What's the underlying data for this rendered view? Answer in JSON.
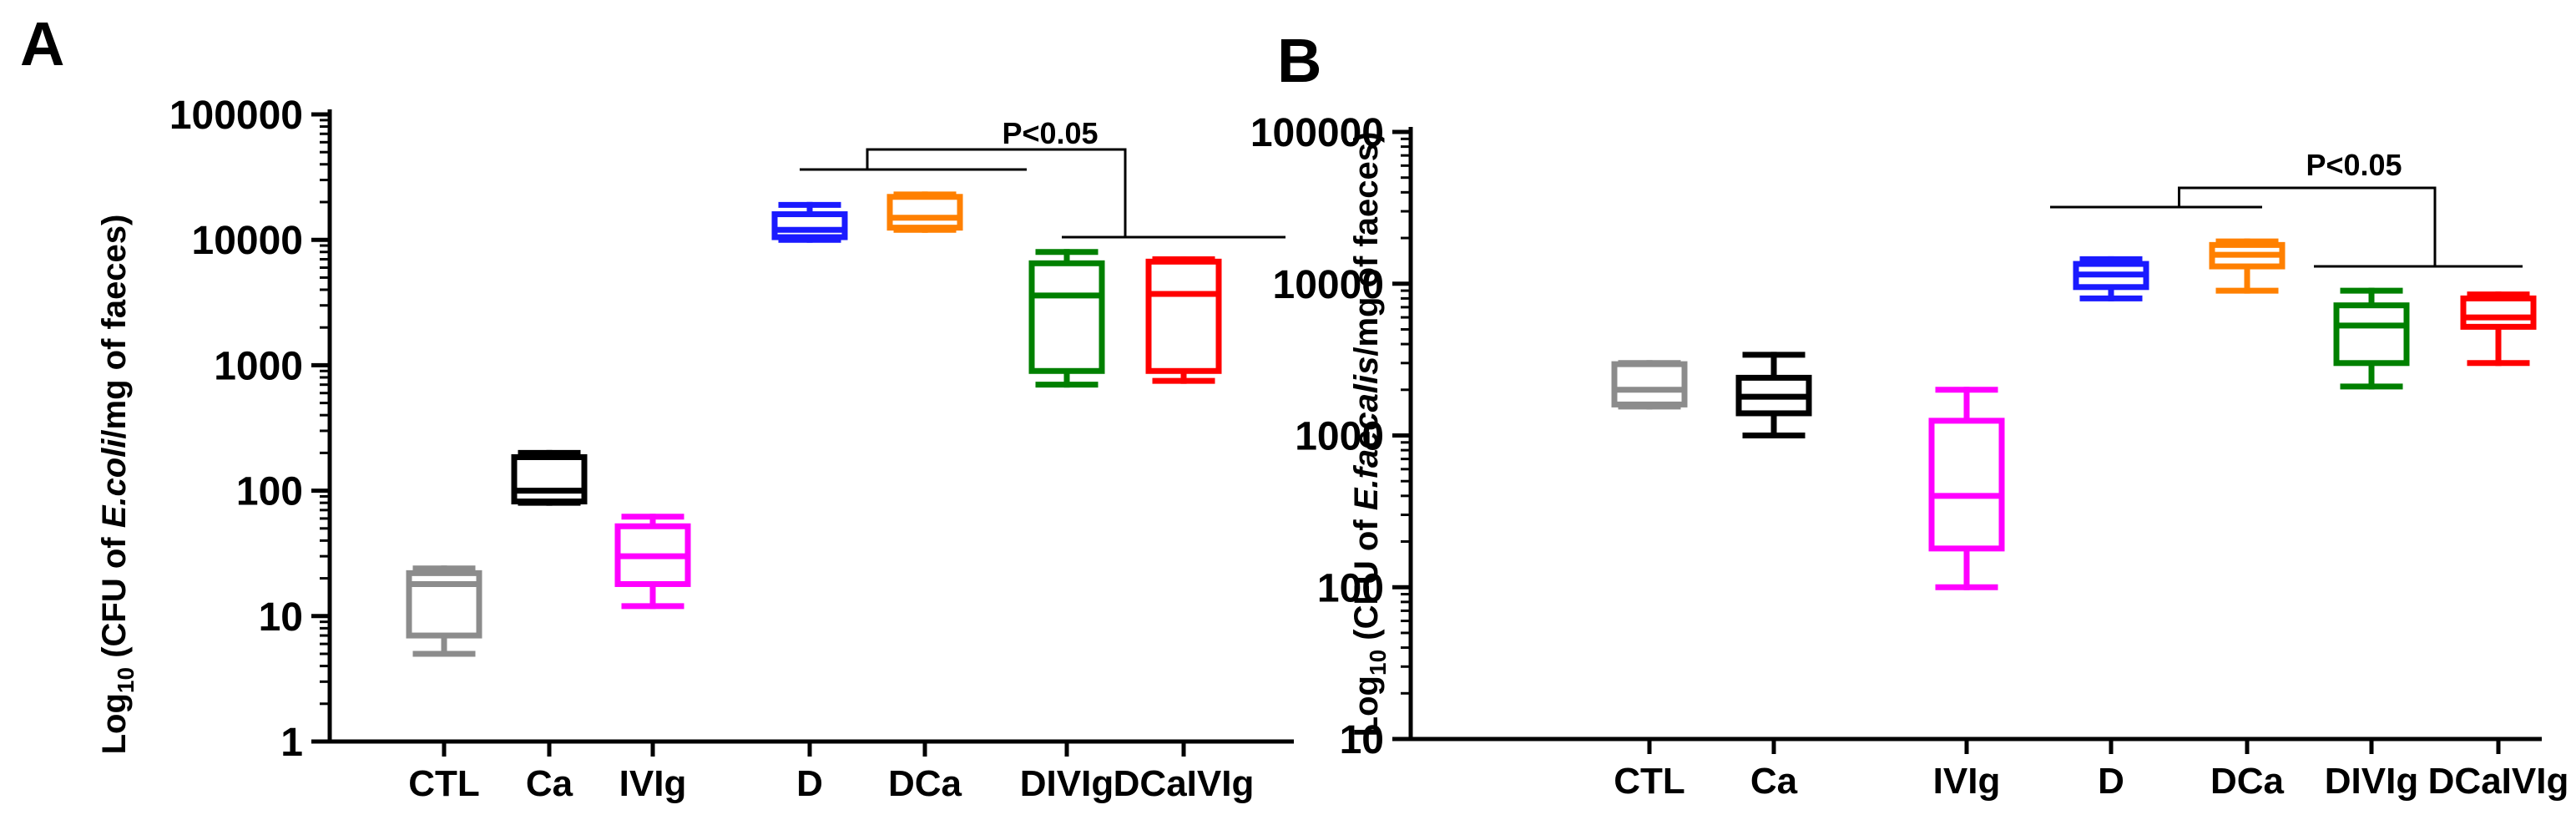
{
  "chart_data": [
    {
      "panel": "A",
      "type": "box",
      "scale": "log",
      "ylim": [
        1,
        100000
      ],
      "yticks": [
        "1",
        "10",
        "100",
        "1000",
        "10000",
        "100000"
      ],
      "ylabel": {
        "prefix": "Log",
        "sub": "10",
        "pre": " (CFU of ",
        "italic": "E.coli",
        "post": "/mg of faeces)"
      },
      "categories": [
        "CTL",
        "Ca",
        "IVIg",
        "D",
        "DCa",
        "DIVIg",
        "DCaIVIg"
      ],
      "series": [
        {
          "name": "CTL",
          "color": "#8c8c8c",
          "min": 5,
          "q1": 7,
          "median": 18,
          "q3": 22,
          "max": 24
        },
        {
          "name": "Ca",
          "color": "#000000",
          "min": 80,
          "q1": 82,
          "median": 100,
          "q3": 185,
          "max": 200
        },
        {
          "name": "IVIg",
          "color": "#ff00ff",
          "min": 12,
          "q1": 18,
          "median": 30,
          "q3": 52,
          "max": 62
        },
        {
          "name": "D",
          "color": "#1a1aff",
          "min": 10000,
          "q1": 10500,
          "median": 12000,
          "q3": 16000,
          "max": 19000
        },
        {
          "name": "DCa",
          "color": "#ff8000",
          "min": 12000,
          "q1": 12500,
          "median": 15000,
          "q3": 22000,
          "max": 23000
        },
        {
          "name": "DIVIg",
          "color": "#008000",
          "min": 700,
          "q1": 900,
          "median": 3600,
          "q3": 6500,
          "max": 8000
        },
        {
          "name": "DCaIVIg",
          "color": "#ff0000",
          "min": 750,
          "q1": 900,
          "median": 3700,
          "q3": 6700,
          "max": 7000
        }
      ],
      "annotation": {
        "text": "P<0.05",
        "left_groups": [
          "D",
          "DCa"
        ],
        "right_groups": [
          "DIVIg",
          "DCaIVIg"
        ]
      }
    },
    {
      "panel": "B",
      "type": "box",
      "scale": "log",
      "ylim": [
        10,
        100000
      ],
      "yticks": [
        "10",
        "100",
        "1000",
        "10000",
        "100000"
      ],
      "ylabel": {
        "prefix": "Log",
        "sub": "10",
        "pre": " (CFU of ",
        "italic": "E.faecalis",
        "post": "/mg of faeces)"
      },
      "categories": [
        "CTL",
        "Ca",
        "IVIg",
        "D",
        "DCa",
        "DIVIg",
        "DCaIVIg"
      ],
      "series": [
        {
          "name": "CTL",
          "color": "#8c8c8c",
          "min": 1550,
          "q1": 1600,
          "median": 2000,
          "q3": 2950,
          "max": 3000
        },
        {
          "name": "Ca",
          "color": "#000000",
          "min": 1000,
          "q1": 1400,
          "median": 1800,
          "q3": 2400,
          "max": 3400
        },
        {
          "name": "IVIg",
          "color": "#ff00ff",
          "min": 100,
          "q1": 180,
          "median": 400,
          "q3": 1250,
          "max": 2000
        },
        {
          "name": "D",
          "color": "#1a1aff",
          "min": 8000,
          "q1": 9500,
          "median": 11500,
          "q3": 13500,
          "max": 14500
        },
        {
          "name": "DCa",
          "color": "#ff8000",
          "min": 9000,
          "q1": 13000,
          "median": 15500,
          "q3": 18000,
          "max": 19000
        },
        {
          "name": "DIVIg",
          "color": "#008000",
          "min": 2100,
          "q1": 3000,
          "median": 5300,
          "q3": 7200,
          "max": 9000
        },
        {
          "name": "DCaIVIg",
          "color": "#ff0000",
          "min": 3000,
          "q1": 5200,
          "median": 6000,
          "q3": 8000,
          "max": 8500
        }
      ],
      "annotation": {
        "text": "P<0.05",
        "left_groups": [
          "D",
          "DCa"
        ],
        "right_groups": [
          "DIVIg",
          "DCaIVIg"
        ]
      }
    }
  ]
}
